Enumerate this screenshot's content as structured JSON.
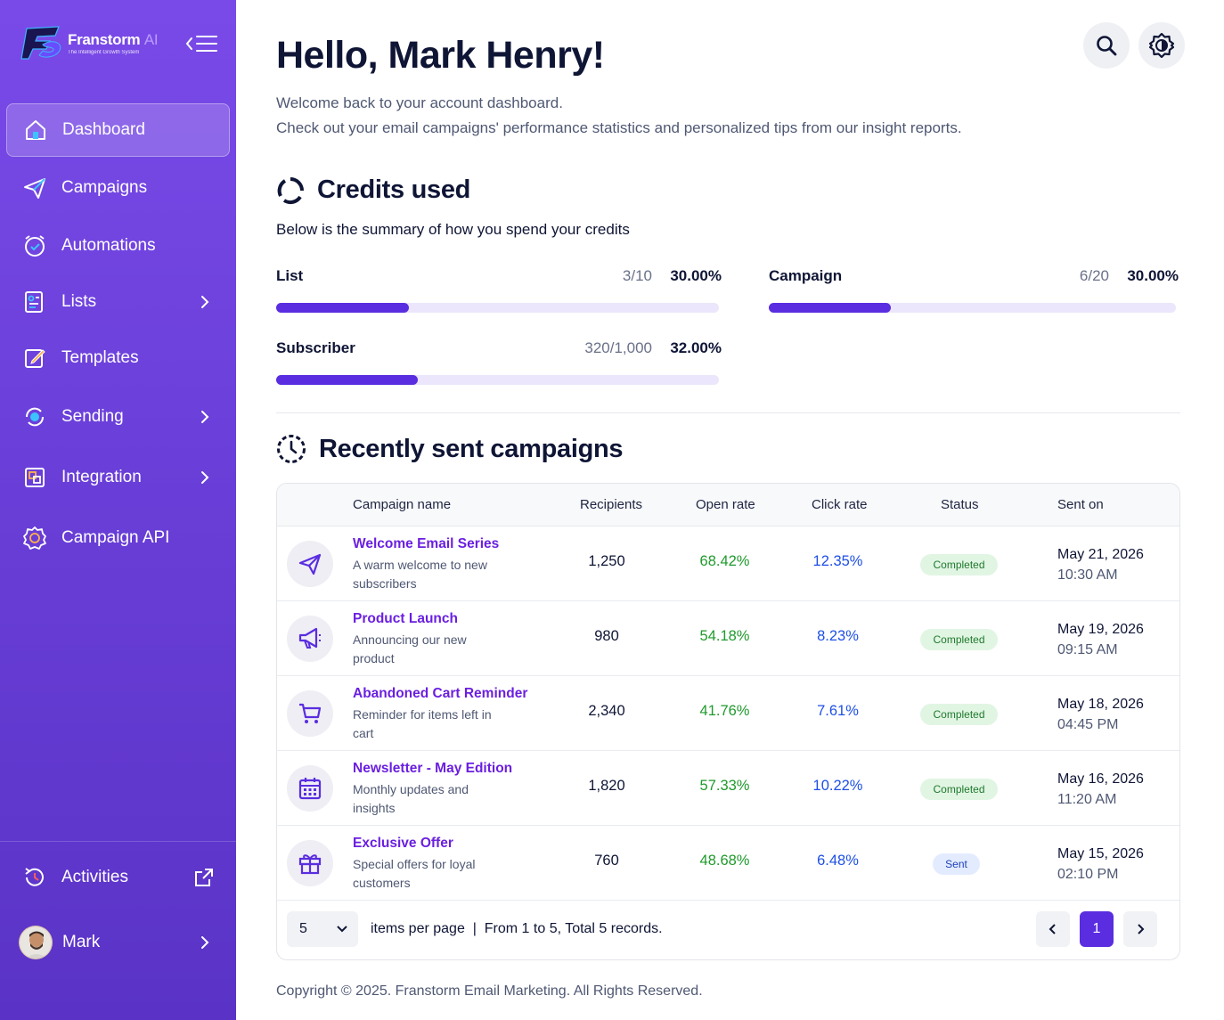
{
  "brand": {
    "name": "Franstorm",
    "ai": "AI",
    "tagline": "The Intelligent Growth System"
  },
  "sidebar": {
    "items": [
      {
        "label": "Dashboard",
        "icon": "home-icon",
        "active": true,
        "has_submenu": false
      },
      {
        "label": "Campaigns",
        "icon": "paper-plane-icon",
        "active": false,
        "has_submenu": false
      },
      {
        "label": "Automations",
        "icon": "alarm-clock-icon",
        "active": false,
        "has_submenu": false
      },
      {
        "label": "Lists",
        "icon": "contact-list-icon",
        "active": false,
        "has_submenu": true
      },
      {
        "label": "Templates",
        "icon": "edit-template-icon",
        "active": false,
        "has_submenu": false
      },
      {
        "label": "Sending",
        "icon": "sync-icon",
        "active": false,
        "has_submenu": true
      },
      {
        "label": "Integration",
        "icon": "integration-icon",
        "active": false,
        "has_submenu": true
      },
      {
        "label": "Campaign API",
        "icon": "gear-api-icon",
        "active": false,
        "has_submenu": false
      }
    ],
    "activities": "Activities",
    "user": "Mark"
  },
  "header": {
    "greeting": "Hello, Mark Henry!",
    "line1": "Welcome back to your account dashboard.",
    "line2": "Check out your email campaigns' performance statistics and personalized tips from our insight reports."
  },
  "credits": {
    "title": "Credits used",
    "subtitle": "Below is the summary of how you spend your credits",
    "items": [
      {
        "label": "List",
        "count": "3/10",
        "percent": "30.00%",
        "fraction": 0.3
      },
      {
        "label": "Campaign",
        "count": "6/20",
        "percent": "30.00%",
        "fraction": 0.3
      },
      {
        "label": "Subscriber",
        "count": "320/1,000",
        "percent": "32.00%",
        "fraction": 0.32
      }
    ]
  },
  "campaigns": {
    "title": "Recently sent campaigns",
    "columns": [
      "Campaign name",
      "Recipients",
      "Open rate",
      "Click rate",
      "Status",
      "Sent on"
    ],
    "rows": [
      {
        "icon": "paper-plane-icon",
        "name": "Welcome Email Series",
        "desc": "A warm welcome to new subscribers",
        "recipients": "1,250",
        "open": "68.42%",
        "click": "12.35%",
        "status": "Completed",
        "date": "May 21, 2026",
        "time": "10:30 AM"
      },
      {
        "icon": "megaphone-icon",
        "name": "Product Launch",
        "desc": "Announcing our new product",
        "recipients": "980",
        "open": "54.18%",
        "click": "8.23%",
        "status": "Completed",
        "date": "May 19, 2026",
        "time": "09:15 AM"
      },
      {
        "icon": "cart-icon",
        "name": "Abandoned Cart Reminder",
        "desc": "Reminder for items left in cart",
        "recipients": "2,340",
        "open": "41.76%",
        "click": "7.61%",
        "status": "Completed",
        "date": "May 18, 2026",
        "time": "04:45 PM"
      },
      {
        "icon": "calendar-icon",
        "name": "Newsletter - May Edition",
        "desc": "Monthly updates and insights",
        "recipients": "1,820",
        "open": "57.33%",
        "click": "10.22%",
        "status": "Completed",
        "date": "May 16, 2026",
        "time": "11:20 AM"
      },
      {
        "icon": "gift-icon",
        "name": "Exclusive Offer",
        "desc": "Special offers for loyal customers",
        "recipients": "760",
        "open": "48.68%",
        "click": "6.48%",
        "status": "Sent",
        "date": "May 15, 2026",
        "time": "02:10 PM"
      }
    ],
    "per_page": "5",
    "per_page_label": "items per page",
    "summary": "From 1 to 5, Total 5 records.",
    "current_page": "1"
  },
  "footer": {
    "copyright": "Copyright © 2025. Franstorm Email Marketing. All Rights Reserved."
  },
  "colors": {
    "accent": "#5a2de0",
    "open_rate": "#1f9a2c",
    "click_rate": "#1e4fe6",
    "link": "#6a1fe0"
  }
}
